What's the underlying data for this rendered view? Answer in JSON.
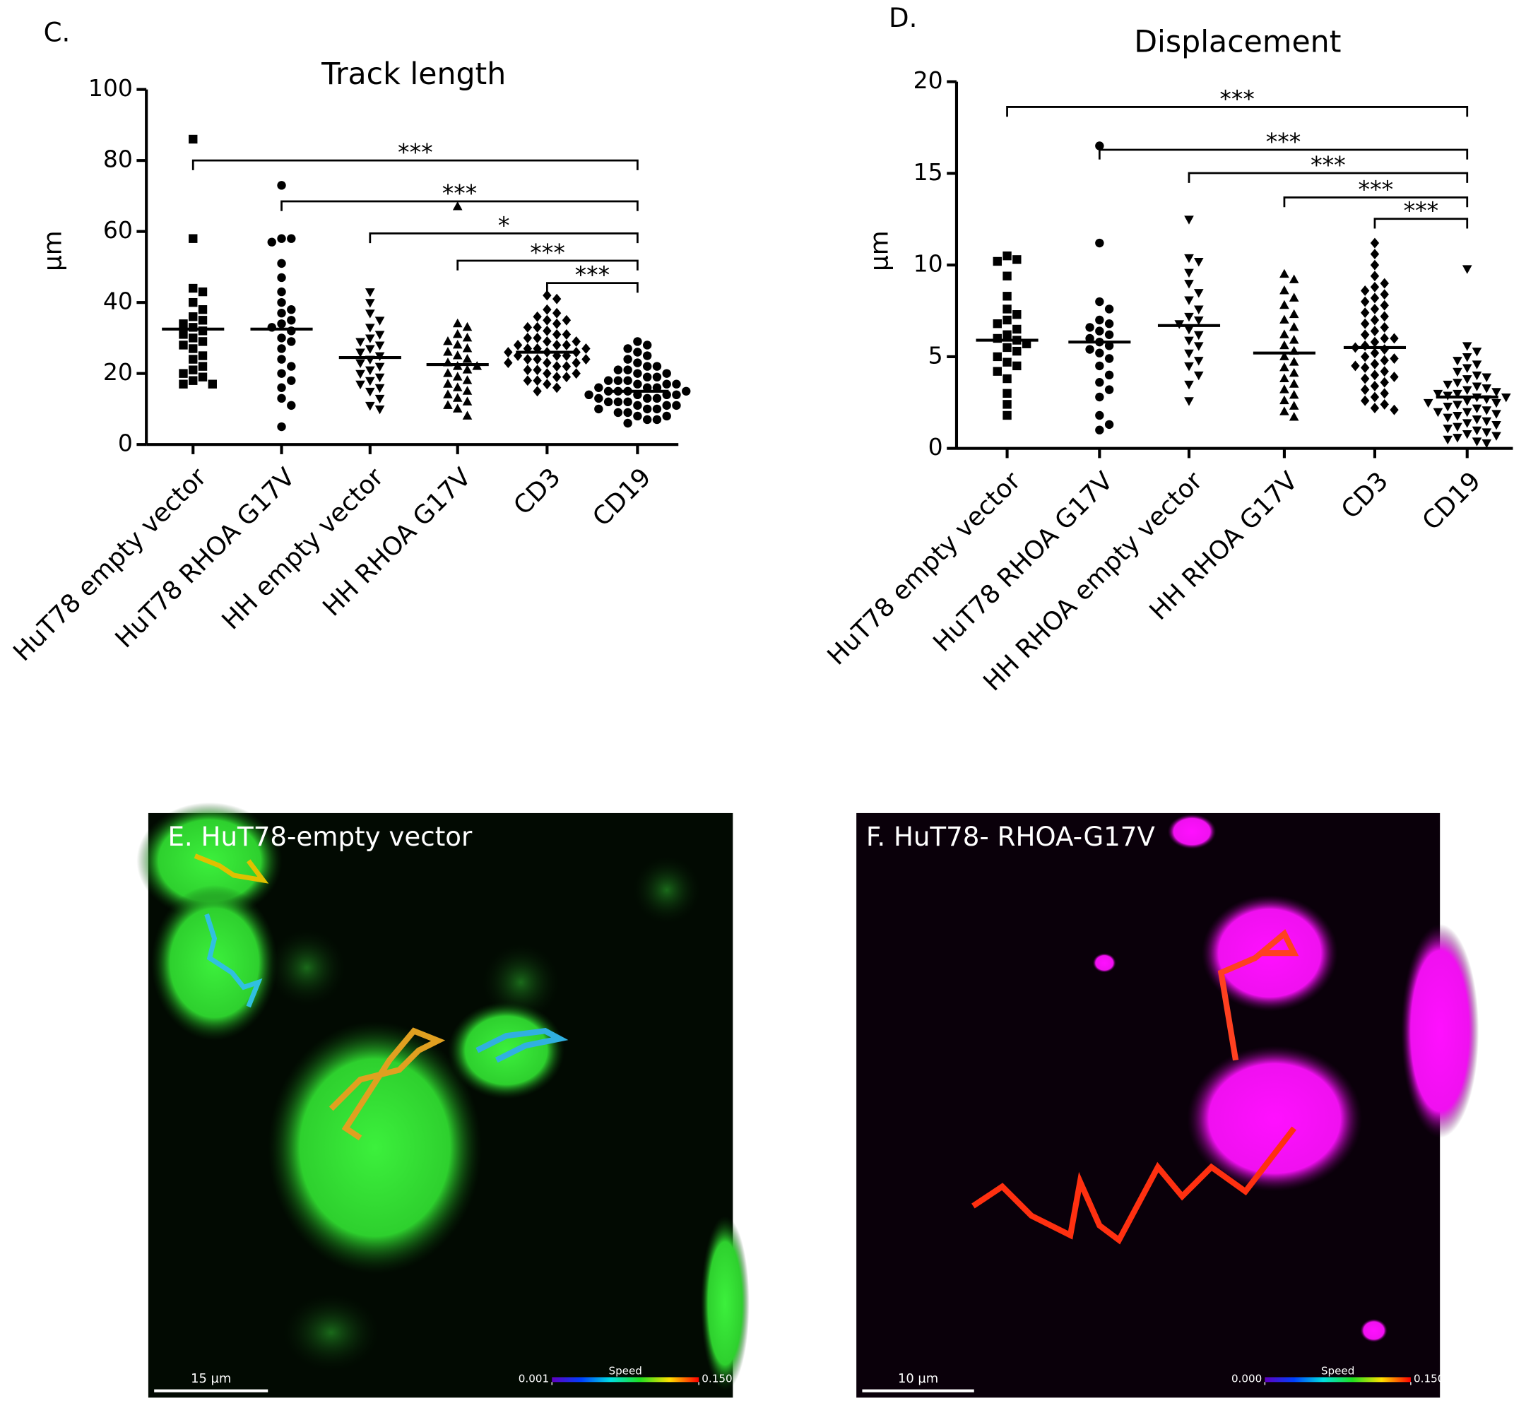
{
  "chart_data": [
    {
      "type": "dot_plot",
      "panel": "C.",
      "title": "Track length",
      "ylabel": "µm",
      "color": "#000000",
      "categories": [
        "HuT78 empty vector",
        "HuT78 RHOA G17V",
        "HH empty vector",
        "HH RHOA G17V",
        "CD3",
        "CD19"
      ],
      "ylim": [
        0,
        100
      ],
      "yticks": [
        0,
        20,
        40,
        60,
        80,
        100
      ],
      "groups": [
        {
          "marker": "square",
          "mean": 32.5,
          "values": [
            86,
            58,
            44,
            43,
            40,
            38,
            36,
            35,
            34,
            33,
            32,
            31,
            30,
            29,
            28,
            27,
            25,
            24,
            22,
            21,
            20,
            19,
            18,
            17,
            17
          ]
        },
        {
          "marker": "circle",
          "mean": 32.5,
          "values": [
            73,
            58,
            58,
            57,
            51,
            47,
            43,
            40,
            38,
            37,
            35,
            34,
            33,
            32,
            30,
            29,
            27,
            24,
            22,
            20,
            18,
            16,
            13,
            11,
            5
          ]
        },
        {
          "marker": "triangle-down",
          "mean": 24.5,
          "values": [
            43,
            40,
            37,
            35,
            33,
            31,
            30,
            29,
            28,
            27,
            26,
            25,
            24,
            23,
            22,
            21,
            20,
            19,
            18,
            17,
            16,
            15,
            13,
            11,
            10
          ]
        },
        {
          "marker": "triangle-up",
          "mean": 22.5,
          "values": [
            67,
            34,
            33,
            31,
            30,
            29,
            28,
            27,
            26,
            25,
            24,
            23,
            22,
            22,
            21,
            20,
            19,
            18,
            17,
            16,
            15,
            14,
            13,
            12,
            11,
            10,
            8
          ]
        },
        {
          "marker": "diamond",
          "mean": 26,
          "values": [
            42,
            41,
            38,
            37,
            36,
            35,
            35,
            34,
            33,
            33,
            32,
            31,
            31,
            30,
            30,
            29,
            29,
            28,
            28,
            28,
            27,
            27,
            27,
            26,
            26,
            26,
            25,
            25,
            25,
            24,
            24,
            24,
            23,
            23,
            23,
            22,
            22,
            21,
            21,
            20,
            20,
            19,
            19,
            18,
            18,
            17,
            16,
            15
          ]
        },
        {
          "marker": "circle",
          "mean": 15,
          "values": [
            29,
            28,
            27,
            26,
            25,
            24,
            23,
            22,
            22,
            21,
            21,
            20,
            20,
            19,
            19,
            18,
            18,
            18,
            17,
            17,
            17,
            16,
            16,
            16,
            15,
            15,
            15,
            15,
            14,
            14,
            14,
            14,
            13,
            13,
            13,
            12,
            12,
            12,
            11,
            11,
            11,
            10,
            10,
            10,
            9,
            9,
            8,
            8,
            7,
            7,
            6
          ]
        }
      ],
      "annotations": [
        {
          "label": "***",
          "from": 0,
          "to": 5
        },
        {
          "label": "***",
          "from": 1,
          "to": 5
        },
        {
          "label": "*",
          "from": 2,
          "to": 5
        },
        {
          "label": "***",
          "from": 3,
          "to": 5
        },
        {
          "label": "***",
          "from": 4,
          "to": 5
        }
      ]
    },
    {
      "type": "dot_plot",
      "panel": "D.",
      "title": "Displacement",
      "ylabel": "µm",
      "color": "#000000",
      "categories": [
        "HuT78 empty vector",
        "HuT78 RHOA G17V",
        "HH RHOA empty vector",
        "HH RHOA G17V",
        "CD3",
        "CD19"
      ],
      "ylim": [
        0,
        20
      ],
      "yticks": [
        0,
        5,
        10,
        15,
        20
      ],
      "groups": [
        {
          "marker": "square",
          "mean": 5.9,
          "values": [
            10.5,
            10.3,
            10.2,
            9.4,
            8.3,
            7.6,
            7.3,
            7.0,
            6.8,
            6.5,
            6.2,
            6.0,
            5.9,
            5.7,
            5.5,
            5.3,
            5.0,
            4.7,
            4.5,
            4.2,
            3.8,
            3.0,
            2.4,
            1.8
          ]
        },
        {
          "marker": "circle",
          "mean": 5.8,
          "values": [
            16.5,
            11.2,
            8.0,
            7.6,
            7.0,
            6.8,
            6.6,
            6.4,
            6.2,
            6.0,
            5.8,
            5.6,
            5.4,
            5.2,
            4.9,
            4.5,
            4.0,
            3.6,
            3.2,
            2.8,
            1.8,
            1.3,
            1.0
          ]
        },
        {
          "marker": "triangle-down",
          "mean": 6.7,
          "values": [
            12.5,
            10.4,
            10.2,
            9.6,
            9.0,
            8.5,
            8.1,
            7.6,
            7.2,
            7.0,
            6.8,
            6.5,
            6.2,
            5.9,
            5.6,
            5.2,
            4.8,
            4.5,
            4.0,
            3.5,
            2.6
          ]
        },
        {
          "marker": "triangle-up",
          "mean": 5.2,
          "values": [
            9.5,
            9.2,
            8.6,
            8.2,
            7.8,
            7.3,
            7.0,
            6.6,
            6.2,
            5.9,
            5.6,
            5.3,
            5.0,
            4.7,
            4.4,
            4.1,
            3.8,
            3.5,
            3.2,
            2.9,
            2.6,
            2.3,
            2.0,
            1.7
          ]
        },
        {
          "marker": "diamond",
          "mean": 5.5,
          "values": [
            11.2,
            10.6,
            10.0,
            9.4,
            9.0,
            8.8,
            8.6,
            8.4,
            8.2,
            8.0,
            7.8,
            7.6,
            7.4,
            7.2,
            7.0,
            6.8,
            6.6,
            6.4,
            6.2,
            6.0,
            6.0,
            5.8,
            5.6,
            5.5,
            5.4,
            5.2,
            5.0,
            4.9,
            4.8,
            4.6,
            4.5,
            4.4,
            4.2,
            4.0,
            3.9,
            3.8,
            3.6,
            3.4,
            3.2,
            3.0,
            2.8,
            2.6,
            2.4,
            2.2,
            2.1
          ]
        },
        {
          "marker": "triangle-down",
          "mean": 2.8,
          "values": [
            9.8,
            5.6,
            5.3,
            5.0,
            4.8,
            4.6,
            4.4,
            4.2,
            4.0,
            3.9,
            3.8,
            3.6,
            3.5,
            3.4,
            3.3,
            3.2,
            3.1,
            3.0,
            3.0,
            2.9,
            2.8,
            2.8,
            2.7,
            2.6,
            2.5,
            2.5,
            2.4,
            2.3,
            2.2,
            2.1,
            2.0,
            2.0,
            1.9,
            1.8,
            1.7,
            1.6,
            1.5,
            1.4,
            1.3,
            1.2,
            1.1,
            1.0,
            0.9,
            0.8,
            0.7,
            0.6,
            0.5,
            0.4,
            0.3
          ]
        }
      ],
      "annotations": [
        {
          "label": "***",
          "from": 0,
          "to": 5
        },
        {
          "label": "***",
          "from": 1,
          "to": 5
        },
        {
          "label": "***",
          "from": 2,
          "to": 5
        },
        {
          "label": "***",
          "from": 3,
          "to": 5
        },
        {
          "label": "***",
          "from": 4,
          "to": 5
        }
      ]
    }
  ],
  "images": [
    {
      "label": "E. HuT78-empty vector",
      "scale_bar": "15 µm",
      "colorbar": {
        "title": "Speed",
        "min": 0.001,
        "max": {
          "value": 0.15,
          "label": "0.150"
        }
      }
    },
    {
      "label": "F. HuT78- RHOA-G17V",
      "scale_bar": "10 µm",
      "colorbar": {
        "title": "Speed",
        "min": {
          "value": 0,
          "label": "0.000"
        },
        "max": {
          "value": 0.15,
          "label": "0.150"
        }
      }
    }
  ]
}
